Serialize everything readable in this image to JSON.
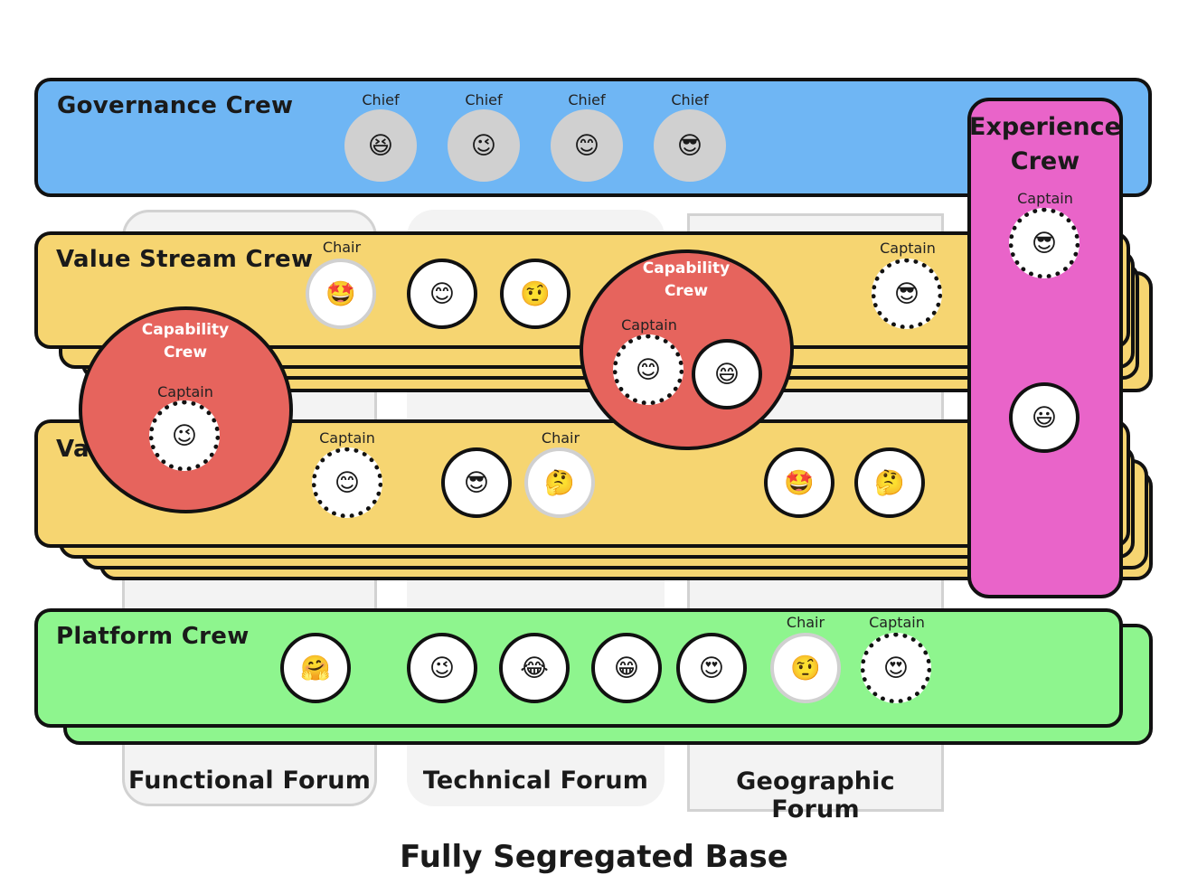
{
  "forums": [
    {
      "id": "functional",
      "label": "Functional Forum"
    },
    {
      "id": "technical",
      "label": "Technical Forum"
    },
    {
      "id": "geographic",
      "label": "Geographic Forum"
    }
  ],
  "crews": {
    "governance": {
      "title": "Governance Crew",
      "members": [
        {
          "role": "Chief",
          "emoji": "😆"
        },
        {
          "role": "Chief",
          "emoji": "😉"
        },
        {
          "role": "Chief",
          "emoji": "😊"
        },
        {
          "role": "Chief",
          "emoji": "😎"
        }
      ]
    },
    "value_stream_1": {
      "title": "Value Stream Crew",
      "members": [
        {
          "role": "Chair",
          "emoji": "🤩"
        },
        {
          "role": "",
          "emoji": "😊"
        },
        {
          "role": "",
          "emoji": "🤨"
        },
        {
          "role": "Captain",
          "emoji": "😎"
        }
      ]
    },
    "value_stream_2": {
      "title": "Va",
      "members": [
        {
          "role": "Captain",
          "emoji": "😊"
        },
        {
          "role": "",
          "emoji": "😎"
        },
        {
          "role": "Chair",
          "emoji": "🤔"
        },
        {
          "role": "",
          "emoji": "🤩"
        },
        {
          "role": "",
          "emoji": "🤔"
        }
      ]
    },
    "capability_1": {
      "title_line1": "Capability",
      "title_line2": "Crew",
      "members": [
        {
          "role": "Captain",
          "emoji": "😉"
        }
      ]
    },
    "capability_2": {
      "title_line1": "Capability",
      "title_line2": "Crew",
      "members": [
        {
          "role": "Captain",
          "emoji": "😊"
        },
        {
          "role": "",
          "emoji": "😄"
        }
      ]
    },
    "experience": {
      "title_line1": "Experience",
      "title_line2": "Crew",
      "members": [
        {
          "role": "Captain",
          "emoji": "😎"
        },
        {
          "role": "",
          "emoji": "😃"
        }
      ]
    },
    "platform": {
      "title": "Platform Crew",
      "members": [
        {
          "role": "",
          "emoji": "🤗"
        },
        {
          "role": "",
          "emoji": "😉"
        },
        {
          "role": "",
          "emoji": "😂"
        },
        {
          "role": "",
          "emoji": "😁"
        },
        {
          "role": "",
          "emoji": "😍"
        },
        {
          "role": "Chair",
          "emoji": "🤨"
        },
        {
          "role": "Captain",
          "emoji": "😍"
        }
      ]
    }
  },
  "footer": {
    "title": "Fully Segregated Base"
  },
  "colors": {
    "governance": "#6fb6f4",
    "value_stream": "#f6d571",
    "capability": "#e6645d",
    "experience": "#e964c9",
    "platform": "#8ef58e",
    "forum": "#f3f3f3"
  }
}
